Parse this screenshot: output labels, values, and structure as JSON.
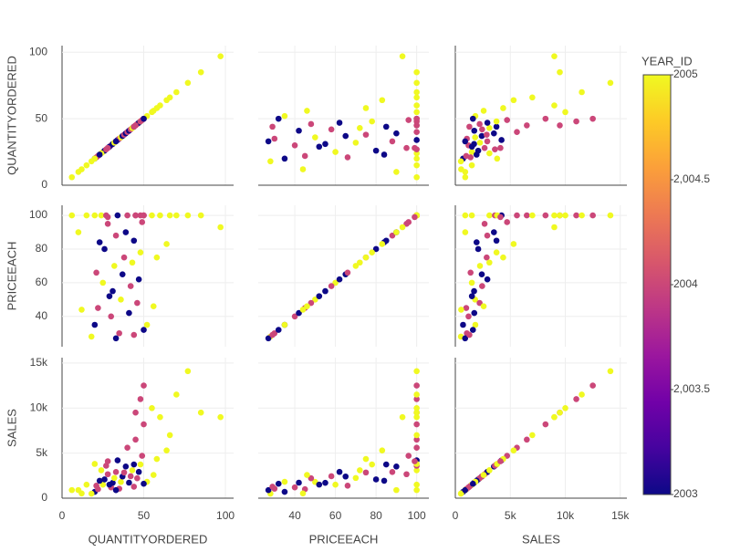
{
  "chart_data": {
    "type": "splom",
    "dimensions": [
      {
        "label": "QUANTITYORDERED",
        "range": [
          0,
          105
        ],
        "ticks": [
          0,
          50,
          100
        ],
        "values": [
          20,
          22,
          25,
          26,
          28,
          30,
          31,
          32,
          33,
          34,
          35,
          36,
          37,
          38,
          39,
          40,
          41,
          42,
          43,
          44,
          45,
          46,
          47,
          48,
          49,
          50,
          24,
          27,
          29,
          21,
          23,
          20,
          45,
          48,
          50,
          55,
          60,
          66,
          70,
          77,
          85,
          97,
          6,
          10,
          15,
          56,
          58,
          64,
          52,
          12,
          18,
          33,
          44,
          50,
          28
        ]
      },
      {
        "label": "PRICEEACH",
        "range": [
          22,
          106
        ],
        "ticks": [
          40,
          60,
          80,
          100
        ],
        "values": [
          35,
          45,
          60,
          80,
          95,
          40,
          55,
          70,
          88,
          100,
          30,
          50,
          65,
          75,
          90,
          100,
          42,
          58,
          72,
          85,
          100,
          48,
          62,
          78,
          96,
          100,
          100,
          100,
          52,
          66,
          84,
          100,
          100,
          100,
          100,
          100,
          100,
          100,
          100,
          100,
          100,
          93,
          100,
          90,
          100,
          46,
          75,
          83,
          35,
          44,
          28,
          27,
          29,
          32,
          99
        ]
      },
      {
        "label": "SALES",
        "range": [
          0,
          15600
        ],
        "ticks": [
          0,
          {
            "value": 5000,
            "label": "5k"
          },
          {
            "value": 10000,
            "label": "10k"
          },
          {
            "value": 15000,
            "label": "15k"
          }
        ],
        "values": [
          700,
          990,
          1500,
          2080,
          2660,
          1200,
          1705,
          2240,
          2904,
          4200,
          1050,
          1800,
          2405,
          2850,
          3510,
          5600,
          1722,
          2436,
          3096,
          3740,
          6500,
          2208,
          2914,
          3744,
          4704,
          8200,
          3100,
          3600,
          1508,
          1386,
          1932,
          3800,
          9500,
          11000,
          12500,
          10000,
          9000,
          7000,
          11500,
          14100,
          9500,
          9000,
          900,
          900,
          1500,
          2576,
          4350,
          5300,
          1820,
          528,
          504,
          891,
          1276,
          1600,
          4100
        ]
      }
    ],
    "color_values": [
      2003,
      2004,
      2005,
      2003,
      2004,
      2004,
      2003,
      2005,
      2004,
      2003,
      2004,
      2005,
      2003,
      2004,
      2003,
      2004,
      2003,
      2004,
      2005,
      2003,
      2004,
      2004,
      2003,
      2005,
      2004,
      2004,
      2005,
      2004,
      2003,
      2004,
      2003,
      2005,
      2004,
      2004,
      2004,
      2005,
      2005,
      2005,
      2005,
      2005,
      2005,
      2005,
      2005,
      2005,
      2005,
      2005,
      2005,
      2005,
      2005,
      2005,
      2005,
      2003,
      2004,
      2003,
      2004
    ],
    "colorbar_title": "YEAR_ID",
    "clim": [
      2003,
      2005
    ],
    "colorbar_ticks": [
      2003,
      {
        "value": 2003.5,
        "label": "2,003.5"
      },
      2004,
      {
        "value": 2004.5,
        "label": "2,004.5"
      },
      2005
    ],
    "colorscale": [
      "#0d0887",
      "#46039f",
      "#7201a8",
      "#9c179e",
      "#bd3786",
      "#d8576b",
      "#ed7953",
      "#fb9f3a",
      "#fdca26",
      "#f0f921"
    ],
    "grid": true
  }
}
